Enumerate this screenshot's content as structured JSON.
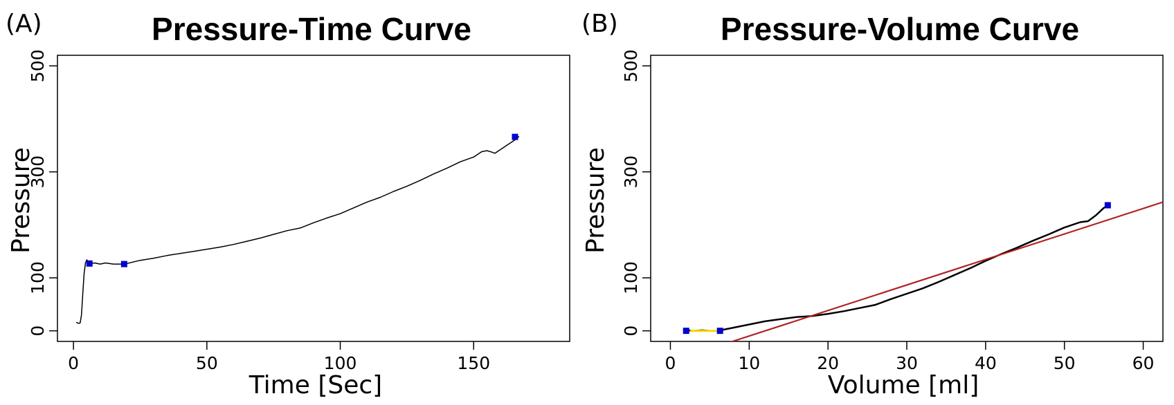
{
  "chart_data": [
    {
      "panel": "(A)",
      "type": "line",
      "title": "Pressure-Time Curve",
      "xlabel": "Time [Sec]",
      "ylabel": "Pressure",
      "xlim": [
        -6,
        186
      ],
      "ylim": [
        -20,
        520
      ],
      "xticks": [
        0,
        50,
        100,
        150
      ],
      "yticks": [
        0,
        100,
        300,
        500
      ],
      "grid": false,
      "series": [
        {
          "color": "#000000",
          "x": [
            1,
            2,
            2.5,
            3,
            3.5,
            4,
            4.5,
            5,
            6,
            8,
            10,
            12,
            15,
            18,
            20,
            25,
            30,
            35,
            40,
            45,
            50,
            55,
            60,
            65,
            70,
            75,
            80,
            85,
            90,
            95,
            100,
            105,
            110,
            115,
            120,
            125,
            130,
            135,
            140,
            145,
            150,
            153,
            155,
            157,
            158,
            160,
            163,
            166,
            167
          ],
          "y": [
            16,
            14,
            15,
            30,
            70,
            108,
            128,
            134,
            127,
            128,
            126,
            128,
            126,
            126,
            127,
            133,
            137,
            142,
            146,
            150,
            154,
            158,
            163,
            169,
            175,
            182,
            189,
            194,
            204,
            213,
            221,
            232,
            243,
            252,
            263,
            273,
            284,
            296,
            307,
            319,
            328,
            338,
            340,
            337,
            335,
            342,
            352,
            362,
            367
          ]
        }
      ],
      "markers": {
        "color": "#0000cc",
        "points": [
          {
            "x": 6,
            "y": 127
          },
          {
            "x": 19,
            "y": 126
          },
          {
            "x": 165.5,
            "y": 366
          }
        ]
      }
    },
    {
      "panel": "(B)",
      "type": "line",
      "title": "Pressure-Volume Curve",
      "xlabel": "Volume [ml]",
      "ylabel": "Pressure",
      "xlim": [
        -2.5,
        62.5
      ],
      "ylim": [
        -20,
        520
      ],
      "xticks": [
        0,
        10,
        20,
        30,
        40,
        50,
        60
      ],
      "yticks": [
        0,
        100,
        300,
        500
      ],
      "grid": false,
      "series": [
        {
          "color": "#000000",
          "x": [
            2,
            3,
            4,
            5,
            6,
            7,
            8,
            10,
            12,
            14,
            16,
            18,
            20,
            22,
            24,
            26,
            28,
            30,
            32,
            34,
            36,
            38,
            40,
            42,
            44,
            46,
            48,
            50,
            52,
            53,
            54,
            55,
            55.8
          ],
          "y": [
            1,
            0,
            1,
            0,
            0,
            3,
            6,
            12,
            18,
            22,
            26,
            28,
            32,
            37,
            43,
            49,
            60,
            70,
            80,
            92,
            105,
            118,
            132,
            145,
            157,
            170,
            182,
            195,
            205,
            207,
            218,
            232,
            238
          ]
        },
        {
          "color": "#ffd700",
          "x": [
            2.5,
            6
          ],
          "y": [
            0,
            0
          ]
        },
        {
          "color": "#b22222",
          "x": [
            -2.5,
            62.5
          ],
          "y": [
            -70,
            243
          ]
        }
      ],
      "markers": {
        "color": "#0000cc",
        "points": [
          {
            "x": 2,
            "y": 0
          },
          {
            "x": 6.3,
            "y": 0
          },
          {
            "x": 55.5,
            "y": 237
          }
        ]
      }
    }
  ]
}
